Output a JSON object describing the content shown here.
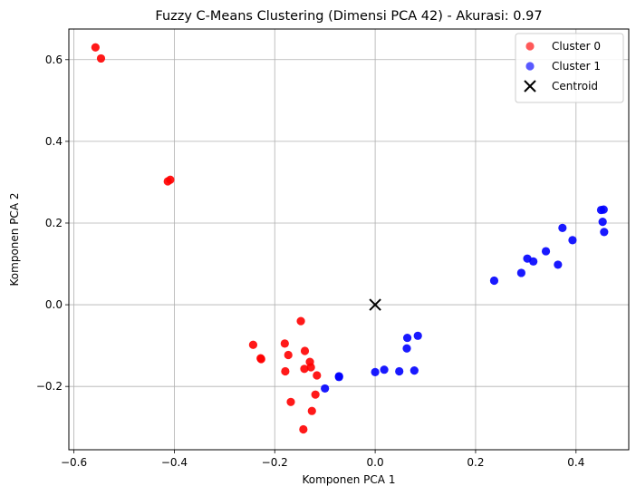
{
  "chart_data": {
    "type": "scatter",
    "title": "Fuzzy C-Means Clustering (Dimensi PCA 42) - Akurasi: 0.97",
    "xlabel": "Komponen PCA 1",
    "ylabel": "Komponen PCA 2",
    "xlim": [
      -0.61,
      0.505
    ],
    "ylim": [
      -0.355,
      0.675
    ],
    "xticks": [
      -0.6,
      -0.4,
      -0.2,
      0.0,
      0.2,
      0.4
    ],
    "xtick_labels": [
      "−0.6",
      "−0.4",
      "−0.2",
      "0.0",
      "0.2",
      "0.4"
    ],
    "yticks": [
      -0.2,
      0.0,
      0.2,
      0.4,
      0.6
    ],
    "ytick_labels": [
      "−0.2",
      "0.0",
      "0.2",
      "0.4",
      "0.6"
    ],
    "grid": true,
    "legend_position": "top-right",
    "series": [
      {
        "name": "Cluster 0",
        "color": "#ff0000",
        "marker": "circle",
        "points": [
          [
            -0.557,
            0.63
          ],
          [
            -0.546,
            0.603
          ],
          [
            -0.413,
            0.302
          ],
          [
            -0.408,
            0.306
          ],
          [
            -0.243,
            -0.098
          ],
          [
            -0.227,
            -0.133
          ],
          [
            -0.228,
            -0.131
          ],
          [
            -0.18,
            -0.095
          ],
          [
            -0.179,
            -0.163
          ],
          [
            -0.173,
            -0.123
          ],
          [
            -0.168,
            -0.238
          ],
          [
            -0.148,
            -0.04
          ],
          [
            -0.14,
            -0.113
          ],
          [
            -0.141,
            -0.157
          ],
          [
            -0.13,
            -0.14
          ],
          [
            -0.128,
            -0.153
          ],
          [
            -0.126,
            -0.26
          ],
          [
            -0.119,
            -0.22
          ],
          [
            -0.116,
            -0.173
          ],
          [
            -0.143,
            -0.305
          ]
        ]
      },
      {
        "name": "Cluster 1",
        "color": "#0000ff",
        "marker": "circle",
        "points": [
          [
            -0.1,
            -0.205
          ],
          [
            -0.072,
            -0.177
          ],
          [
            -0.072,
            -0.175
          ],
          [
            0.0,
            -0.165
          ],
          [
            0.018,
            -0.159
          ],
          [
            0.048,
            -0.163
          ],
          [
            0.064,
            -0.081
          ],
          [
            0.063,
            -0.107
          ],
          [
            0.078,
            -0.161
          ],
          [
            0.085,
            -0.076
          ],
          [
            0.237,
            0.059
          ],
          [
            0.291,
            0.078
          ],
          [
            0.303,
            0.113
          ],
          [
            0.315,
            0.106
          ],
          [
            0.34,
            0.131
          ],
          [
            0.364,
            0.098
          ],
          [
            0.373,
            0.188
          ],
          [
            0.393,
            0.158
          ],
          [
            0.45,
            0.232
          ],
          [
            0.455,
            0.233
          ],
          [
            0.453,
            0.203
          ],
          [
            0.456,
            0.178
          ]
        ]
      },
      {
        "name": "Centroid",
        "color": "#000000",
        "marker": "x",
        "points": [
          [
            0.0,
            0.0
          ]
        ]
      }
    ]
  }
}
